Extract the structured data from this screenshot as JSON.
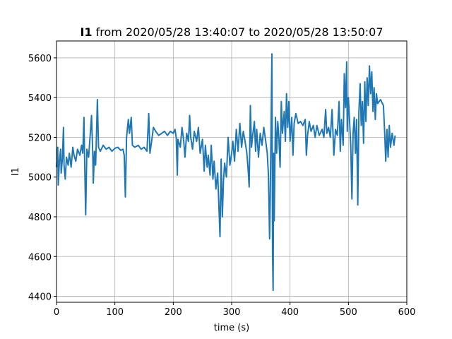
{
  "chart_data": {
    "type": "line",
    "title_bold": "I1",
    "title_rest": " from 2020/05/28 13:40:07 to 2020/05/28 13:50:07",
    "xlabel": "time (s)",
    "ylabel": "I1",
    "xlim": [
      0,
      600
    ],
    "ylim": [
      4370,
      5685
    ],
    "xticks": [
      0,
      100,
      200,
      300,
      400,
      500,
      600
    ],
    "yticks": [
      4400,
      4600,
      4800,
      5000,
      5200,
      5400,
      5600
    ],
    "grid": true,
    "legend": "none",
    "series": [
      {
        "color": "#1f77b4",
        "points": [
          [
            0,
            5050
          ],
          [
            2,
            5150
          ],
          [
            3,
            4960
          ],
          [
            5,
            5080
          ],
          [
            7,
            5140
          ],
          [
            8,
            5020
          ],
          [
            10,
            5090
          ],
          [
            12,
            5250
          ],
          [
            13,
            5060
          ],
          [
            15,
            4990
          ],
          [
            17,
            5100
          ],
          [
            20,
            5060
          ],
          [
            22,
            5120
          ],
          [
            25,
            5050
          ],
          [
            28,
            5150
          ],
          [
            30,
            5110
          ],
          [
            33,
            5080
          ],
          [
            36,
            5140
          ],
          [
            40,
            5110
          ],
          [
            43,
            5160
          ],
          [
            45,
            5120
          ],
          [
            47,
            5300
          ],
          [
            48,
            5110
          ],
          [
            50,
            4810
          ],
          [
            52,
            5140
          ],
          [
            55,
            5100
          ],
          [
            57,
            5180
          ],
          [
            60,
            5310
          ],
          [
            62,
            5120
          ],
          [
            63,
            4970
          ],
          [
            65,
            5130
          ],
          [
            67,
            5060
          ],
          [
            68,
            5160
          ],
          [
            70,
            5390
          ],
          [
            72,
            5150
          ],
          [
            75,
            5130
          ],
          [
            80,
            5160
          ],
          [
            85,
            5140
          ],
          [
            90,
            5150
          ],
          [
            95,
            5130
          ],
          [
            100,
            5145
          ],
          [
            105,
            5150
          ],
          [
            110,
            5135
          ],
          [
            114,
            5140
          ],
          [
            116,
            5110
          ],
          [
            118,
            4900
          ],
          [
            120,
            5200
          ],
          [
            123,
            5290
          ],
          [
            125,
            5220
          ],
          [
            128,
            5300
          ],
          [
            130,
            5160
          ],
          [
            134,
            5150
          ],
          [
            140,
            5160
          ],
          [
            145,
            5140
          ],
          [
            150,
            5150
          ],
          [
            155,
            5130
          ],
          [
            158,
            5320
          ],
          [
            160,
            5120
          ],
          [
            163,
            5180
          ],
          [
            166,
            5250
          ],
          [
            170,
            5230
          ],
          [
            175,
            5210
          ],
          [
            180,
            5220
          ],
          [
            185,
            5230
          ],
          [
            190,
            5210
          ],
          [
            195,
            5230
          ],
          [
            200,
            5220
          ],
          [
            203,
            5240
          ],
          [
            205,
            5200
          ],
          [
            207,
            5010
          ],
          [
            208,
            5190
          ],
          [
            212,
            5150
          ],
          [
            215,
            5250
          ],
          [
            218,
            5180
          ],
          [
            220,
            5100
          ],
          [
            223,
            5220
          ],
          [
            226,
            5180
          ],
          [
            228,
            5310
          ],
          [
            230,
            5200
          ],
          [
            233,
            5140
          ],
          [
            236,
            5230
          ],
          [
            240,
            5180
          ],
          [
            243,
            5250
          ],
          [
            246,
            5120
          ],
          [
            250,
            5190
          ],
          [
            253,
            5030
          ],
          [
            255,
            5160
          ],
          [
            258,
            5050
          ],
          [
            260,
            5110
          ],
          [
            263,
            5010
          ],
          [
            265,
            5160
          ],
          [
            268,
            4990
          ],
          [
            270,
            5080
          ],
          [
            273,
            4940
          ],
          [
            276,
            5020
          ],
          [
            278,
            4870
          ],
          [
            280,
            4700
          ],
          [
            282,
            5090
          ],
          [
            284,
            4800
          ],
          [
            286,
            4980
          ],
          [
            288,
            5070
          ],
          [
            291,
            5000
          ],
          [
            294,
            5200
          ],
          [
            297,
            5060
          ],
          [
            300,
            5120
          ],
          [
            302,
            5180
          ],
          [
            305,
            5080
          ],
          [
            308,
            5240
          ],
          [
            311,
            5130
          ],
          [
            314,
            5270
          ],
          [
            317,
            5150
          ],
          [
            320,
            5230
          ],
          [
            323,
            5180
          ],
          [
            326,
            5120
          ],
          [
            328,
            5050
          ],
          [
            330,
            4950
          ],
          [
            332,
            5360
          ],
          [
            334,
            5150
          ],
          [
            336,
            5210
          ],
          [
            339,
            5280
          ],
          [
            341,
            5130
          ],
          [
            343,
            5240
          ],
          [
            346,
            5100
          ],
          [
            349,
            5220
          ],
          [
            352,
            5160
          ],
          [
            355,
            5250
          ],
          [
            358,
            5190
          ],
          [
            361,
            5120
          ],
          [
            363,
            5010
          ],
          [
            365,
            4690
          ],
          [
            366,
            4880
          ],
          [
            368,
            5380
          ],
          [
            369,
            5620
          ],
          [
            370,
            4620
          ],
          [
            371,
            4430
          ],
          [
            372,
            5120
          ],
          [
            373,
            4780
          ],
          [
            375,
            5300
          ],
          [
            377,
            5120
          ],
          [
            379,
            5280
          ],
          [
            381,
            5190
          ],
          [
            383,
            5050
          ],
          [
            385,
            5380
          ],
          [
            387,
            5220
          ],
          [
            390,
            5330
          ],
          [
            392,
            5180
          ],
          [
            394,
            5420
          ],
          [
            396,
            5250
          ],
          [
            398,
            5380
          ],
          [
            400,
            5180
          ],
          [
            403,
            5300
          ],
          [
            405,
            5110
          ],
          [
            407,
            5270
          ],
          [
            410,
            5320
          ],
          [
            414,
            5270
          ],
          [
            418,
            5280
          ],
          [
            422,
            5260
          ],
          [
            426,
            5290
          ],
          [
            428,
            5110
          ],
          [
            430,
            5210
          ],
          [
            433,
            5280
          ],
          [
            436,
            5230
          ],
          [
            440,
            5260
          ],
          [
            443,
            5200
          ],
          [
            446,
            5260
          ],
          [
            450,
            5210
          ],
          [
            455,
            5240
          ],
          [
            458,
            5200
          ],
          [
            461,
            5340
          ],
          [
            463,
            5220
          ],
          [
            466,
            5250
          ],
          [
            469,
            5200
          ],
          [
            472,
            5340
          ],
          [
            475,
            5110
          ],
          [
            478,
            5240
          ],
          [
            481,
            5210
          ],
          [
            484,
            5380
          ],
          [
            486,
            5130
          ],
          [
            488,
            5290
          ],
          [
            491,
            5160
          ],
          [
            493,
            5520
          ],
          [
            495,
            5350
          ],
          [
            497,
            5580
          ],
          [
            498,
            5230
          ],
          [
            500,
            5400
          ],
          [
            502,
            5280
          ],
          [
            504,
            5160
          ],
          [
            506,
            4890
          ],
          [
            508,
            5220
          ],
          [
            510,
            5300
          ],
          [
            512,
            5120
          ],
          [
            514,
            5290
          ],
          [
            516,
            4860
          ],
          [
            518,
            5330
          ],
          [
            520,
            5470
          ],
          [
            522,
            5260
          ],
          [
            524,
            5380
          ],
          [
            526,
            5170
          ],
          [
            528,
            5480
          ],
          [
            530,
            5280
          ],
          [
            532,
            5500
          ],
          [
            534,
            5360
          ],
          [
            536,
            5560
          ],
          [
            538,
            5420
          ],
          [
            540,
            5530
          ],
          [
            542,
            5330
          ],
          [
            544,
            5450
          ],
          [
            546,
            5290
          ],
          [
            548,
            5420
          ],
          [
            550,
            5370
          ],
          [
            555,
            5390
          ],
          [
            560,
            5360
          ],
          [
            562,
            5230
          ],
          [
            564,
            5080
          ],
          [
            566,
            5240
          ],
          [
            568,
            5100
          ],
          [
            570,
            5260
          ],
          [
            572,
            5150
          ],
          [
            575,
            5220
          ],
          [
            578,
            5160
          ],
          [
            580,
            5210
          ]
        ]
      }
    ]
  }
}
